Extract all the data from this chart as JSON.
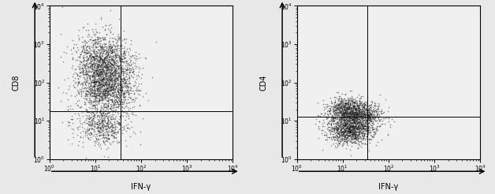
{
  "fig_width": 6.28,
  "fig_height": 2.46,
  "dpi": 100,
  "background_color": "#e8e8e8",
  "plot_bg": "#f0f0f0",
  "plots": [
    {
      "ylabel": "CD8",
      "xlabel": "IFN-γ",
      "xlim": [
        1.0,
        10000.0
      ],
      "ylim": [
        1.0,
        10000.0
      ],
      "xticks": [
        1.0,
        10.0,
        100.0,
        1000.0,
        10000.0
      ],
      "yticks": [
        1.0,
        10.0,
        100.0,
        1000.0,
        10000.0
      ],
      "gate_x": 35,
      "gate_y": 18,
      "clusters": [
        {
          "x_mean": 1.15,
          "x_std": 0.28,
          "y_mean": 2.55,
          "y_std": 0.38,
          "n": 1200
        },
        {
          "x_mean": 1.15,
          "x_std": 0.28,
          "y_mean": 1.85,
          "y_std": 0.35,
          "n": 1000
        },
        {
          "x_mean": 1.15,
          "x_std": 0.28,
          "y_mean": 0.85,
          "y_std": 0.25,
          "n": 500
        },
        {
          "x_mean": 1.55,
          "x_std": 0.25,
          "y_mean": 2.0,
          "y_std": 0.45,
          "n": 400
        }
      ]
    },
    {
      "ylabel": "CD4",
      "xlabel": "IFN-γ",
      "xlim": [
        1.0,
        10000.0
      ],
      "ylim": [
        1.0,
        10000.0
      ],
      "xticks": [
        1.0,
        10.0,
        100.0,
        1000.0,
        10000.0
      ],
      "yticks": [
        1.0,
        10.0,
        100.0,
        1000.0,
        10000.0
      ],
      "gate_x": 35,
      "gate_y": 13,
      "clusters": [
        {
          "x_mean": 1.15,
          "x_std": 0.25,
          "y_mean": 1.25,
          "y_std": 0.18,
          "n": 1100
        },
        {
          "x_mean": 1.15,
          "x_std": 0.25,
          "y_mean": 0.75,
          "y_std": 0.18,
          "n": 1100
        },
        {
          "x_mean": 1.55,
          "x_std": 0.22,
          "y_mean": 1.1,
          "y_std": 0.2,
          "n": 300
        }
      ]
    }
  ],
  "scatter_color": "#222222",
  "scatter_size": 1.2,
  "scatter_alpha": 0.55
}
